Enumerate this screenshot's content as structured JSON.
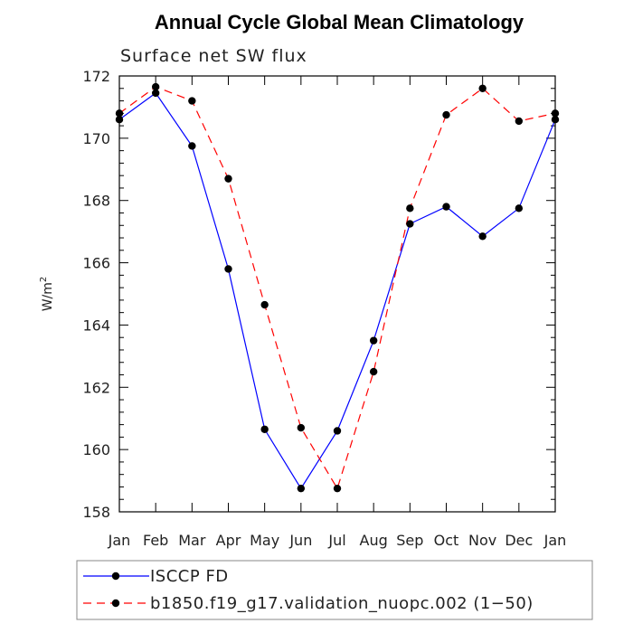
{
  "chart_data": {
    "type": "line",
    "title": "Annual Cycle Global Mean Climatology",
    "subtitle": "Surface net SW flux",
    "ylabel": "W/m",
    "ylabel_superscript": "2",
    "xlabel": "",
    "categories": [
      "Jan",
      "Feb",
      "Mar",
      "Apr",
      "May",
      "Jun",
      "Jul",
      "Aug",
      "Sep",
      "Oct",
      "Nov",
      "Dec",
      "Jan"
    ],
    "ylim": [
      158,
      172
    ],
    "yticks": [
      158,
      160,
      162,
      164,
      166,
      168,
      170,
      172
    ],
    "grid": false,
    "legend_position": "bottom",
    "series": [
      {
        "name": "ISCCP FD",
        "color": "#0000ff",
        "line_style": "solid",
        "marker": "filled-circle",
        "values": [
          170.6,
          171.45,
          169.75,
          165.8,
          160.65,
          158.75,
          160.6,
          163.5,
          167.25,
          167.8,
          166.85,
          167.75,
          170.6
        ]
      },
      {
        "name": "b1850.f19_g17.validation_nuopc.002 (1−50)",
        "color": "#ff0000",
        "line_style": "dashed",
        "marker": "filled-circle",
        "values": [
          170.8,
          171.65,
          171.2,
          168.7,
          164.65,
          160.7,
          158.75,
          162.5,
          167.75,
          170.75,
          171.6,
          170.55,
          170.8
        ]
      }
    ]
  }
}
